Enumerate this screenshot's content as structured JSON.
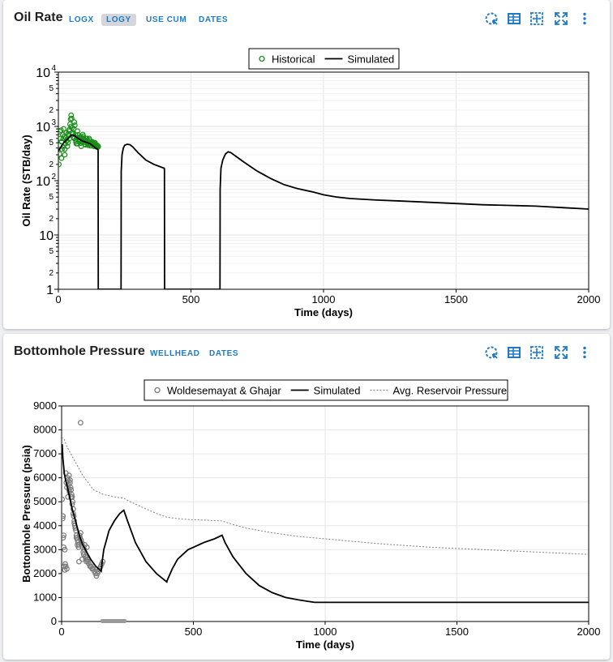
{
  "panels": [
    {
      "title": "Oil Rate",
      "buttons": [
        {
          "label": "LOGX",
          "active": false
        },
        {
          "label": "LOGY",
          "active": true
        },
        {
          "label": "USE CUM",
          "active": false
        },
        {
          "label": "DATES",
          "active": false
        }
      ],
      "icons": [
        "lasso-select-icon",
        "table-icon",
        "move-icon",
        "fullscreen-icon",
        "more-vert-icon"
      ]
    },
    {
      "title": "Bottomhole Pressure",
      "buttons": [
        {
          "label": "WELLHEAD",
          "active": false
        },
        {
          "label": "DATES",
          "active": false
        }
      ],
      "icons": [
        "lasso-select-icon",
        "table-icon",
        "move-icon",
        "fullscreen-icon",
        "more-vert-icon"
      ]
    }
  ],
  "chart_data": [
    {
      "type": "line",
      "xlabel": "Time (days)",
      "ylabel": "Oil Rate (STB/day)",
      "xlim": [
        0,
        2000
      ],
      "ylim": [
        1,
        10000
      ],
      "yscale": "log",
      "xticks": [
        "0",
        "500",
        "1000",
        "1500",
        "2000"
      ],
      "grid": true,
      "legend_position": "top-center",
      "series": [
        {
          "name": "Historical",
          "style": "marker-circle",
          "color": "#1a8f1a",
          "x": [
            2,
            4,
            6,
            8,
            10,
            12,
            14,
            16,
            18,
            20,
            22,
            24,
            26,
            28,
            30,
            32,
            34,
            36,
            38,
            40,
            42,
            44,
            46,
            48,
            50,
            52,
            54,
            56,
            58,
            60,
            62,
            64,
            66,
            68,
            70,
            72,
            74,
            76,
            78,
            80,
            82,
            84,
            86,
            88,
            90,
            92,
            94,
            96,
            98,
            100,
            102,
            104,
            106,
            108,
            110,
            112,
            114,
            116,
            118,
            120,
            122,
            124,
            126,
            128,
            130,
            132,
            134,
            136,
            138,
            140,
            142,
            144,
            146,
            148,
            150,
            6,
            12,
            18,
            24,
            30,
            36,
            42,
            48,
            54,
            60,
            66,
            72,
            78,
            84,
            90,
            96,
            102,
            108,
            114,
            120,
            126,
            132,
            138,
            144,
            150
          ],
          "y": [
            200,
            310,
            450,
            600,
            850,
            520,
            380,
            700,
            420,
            900,
            650,
            300,
            480,
            620,
            760,
            550,
            430,
            500,
            680,
            820,
            600,
            1100,
            1350,
            1600,
            1400,
            950,
            720,
            640,
            900,
            1200,
            1050,
            700,
            560,
            480,
            620,
            820,
            700,
            580,
            520,
            640,
            560,
            490,
            430,
            530,
            620,
            710,
            660,
            580,
            510,
            470,
            560,
            600,
            540,
            500,
            480,
            450,
            520,
            600,
            560,
            500,
            470,
            440,
            500,
            520,
            480,
            460,
            430,
            450,
            480,
            460,
            440,
            420,
            450,
            430,
            420,
            800,
            260,
            600,
            380,
            540,
            720,
            880,
            1000,
            760,
            600,
            520,
            480,
            560,
            640,
            520,
            580,
            460,
            600,
            500,
            440,
            520,
            470,
            500,
            450,
            430
          ],
          "values": [
            200,
            310,
            450,
            600,
            850,
            520,
            380,
            700,
            420,
            900,
            650,
            300,
            480,
            620,
            760,
            550,
            430,
            500,
            680,
            820,
            600,
            1100,
            1350,
            1600,
            1400,
            950,
            720,
            640,
            900,
            1200,
            1050,
            700,
            560,
            480,
            620,
            820,
            700,
            580,
            520,
            640,
            560,
            490,
            430,
            530,
            620,
            710,
            660,
            580,
            510,
            470,
            560,
            600,
            540,
            500,
            480,
            450,
            520,
            600,
            560,
            500,
            470,
            440,
            500,
            520,
            480,
            460,
            430,
            450,
            480,
            460,
            440,
            420,
            450,
            430,
            420,
            800,
            260,
            600,
            380,
            540,
            720,
            880,
            1000,
            760,
            600,
            520,
            480,
            560,
            640,
            520,
            580,
            460,
            600,
            500,
            440,
            520,
            470,
            500,
            450,
            430
          ]
        },
        {
          "name": "Simulated",
          "style": "solid",
          "color": "#000000",
          "x": [
            0,
            10,
            20,
            30,
            40,
            50,
            60,
            70,
            80,
            90,
            100,
            110,
            120,
            130,
            140,
            148,
            150,
            150.5,
            151,
            236,
            236.5,
            237,
            240,
            245,
            250,
            260,
            270,
            280,
            300,
            330,
            360,
            399,
            400,
            400.5,
            401,
            609,
            609.5,
            610,
            613,
            620,
            630,
            640,
            650,
            670,
            700,
            750,
            800,
            850,
            900,
            960,
            1000,
            1050,
            1100,
            1200,
            1300,
            1400,
            1500,
            1600,
            1700,
            1800,
            1900,
            2000
          ],
          "y": [
            350,
            420,
            500,
            560,
            620,
            700,
            680,
            620,
            580,
            540,
            520,
            500,
            480,
            440,
            400,
            380,
            370,
            1,
            1,
            1,
            1,
            150,
            300,
            400,
            450,
            470,
            460,
            420,
            330,
            240,
            200,
            170,
            165,
            1,
            1,
            1,
            1,
            70,
            170,
            240,
            310,
            340,
            330,
            280,
            220,
            150,
            110,
            85,
            72,
            62,
            55,
            50,
            47,
            44,
            42,
            40,
            38,
            36,
            35,
            34,
            32,
            30
          ],
          "values": [
            350,
            420,
            500,
            560,
            620,
            700,
            680,
            620,
            580,
            540,
            520,
            500,
            480,
            440,
            400,
            380,
            370,
            1,
            1,
            1,
            1,
            150,
            300,
            400,
            450,
            470,
            460,
            420,
            330,
            240,
            200,
            170,
            165,
            1,
            1,
            1,
            1,
            70,
            170,
            240,
            310,
            340,
            330,
            280,
            220,
            150,
            110,
            85,
            72,
            62,
            55,
            50,
            47,
            44,
            42,
            40,
            38,
            36,
            35,
            34,
            32,
            30
          ]
        }
      ]
    },
    {
      "type": "line",
      "xlabel": "Time (days)",
      "ylabel": "Bottomhole Pressure (psia)",
      "xlim": [
        0,
        2000
      ],
      "ylim": [
        0,
        9000
      ],
      "yticks": [
        0,
        1000,
        2000,
        3000,
        4000,
        5000,
        6000,
        7000,
        8000,
        9000
      ],
      "xticks": [
        "0",
        "500",
        "1000",
        "1500",
        "2000"
      ],
      "grid": true,
      "legend_position": "top-center",
      "series": [
        {
          "name": "Woldesemayat & Ghajar",
          "style": "marker-circle",
          "color": "#7a7a7a",
          "x": [
            2,
            4,
            6,
            8,
            10,
            12,
            14,
            16,
            18,
            20,
            22,
            24,
            26,
            28,
            30,
            32,
            34,
            36,
            38,
            40,
            42,
            44,
            46,
            48,
            50,
            52,
            54,
            56,
            58,
            60,
            62,
            64,
            66,
            68,
            70,
            72,
            74,
            76,
            78,
            80,
            82,
            84,
            86,
            88,
            90,
            92,
            94,
            96,
            98,
            100,
            104,
            108,
            112,
            116,
            120,
            124,
            128,
            132,
            136,
            140,
            144,
            148,
            152,
            156,
            60,
            66,
            72,
            78,
            84,
            5,
            8,
            12,
            16,
            20,
            24,
            28,
            32,
            36,
            40,
            44,
            48,
            52,
            56
          ],
          "y": [
            5100,
            4300,
            3500,
            3100,
            2300,
            2150,
            2400,
            6200,
            5800,
            5600,
            6000,
            5900,
            5700,
            5500,
            5400,
            5800,
            5600,
            5500,
            5300,
            5200,
            5000,
            4700,
            4400,
            4200,
            4000,
            3900,
            3800,
            3600,
            3500,
            3400,
            3300,
            3100,
            3200,
            3600,
            3500,
            3700,
            3400,
            3300,
            3200,
            3100,
            2900,
            2800,
            3000,
            3200,
            2700,
            2600,
            2500,
            3100,
            2600,
            2500,
            2400,
            2300,
            2300,
            2200,
            2200,
            2100,
            2000,
            1900,
            2000,
            2100,
            2200,
            2300,
            2400,
            2500,
            3200,
            2500,
            8300,
            2600,
            2800,
            4400,
            3600,
            3000,
            2300,
            2200,
            5200,
            6100,
            5900,
            5200,
            4900,
            4500,
            4100,
            3900,
            3500
          ],
          "values": [
            5100,
            4300,
            3500,
            3100,
            2300,
            2150,
            2400,
            6200,
            5800,
            5600,
            6000,
            5900,
            5700,
            5500,
            5400,
            5800,
            5600,
            5500,
            5300,
            5200,
            5000,
            4700,
            4400,
            4200,
            4000,
            3900,
            3800,
            3600,
            3500,
            3400,
            3300,
            3100,
            3200,
            3600,
            3500,
            3700,
            3400,
            3300,
            3200,
            3100,
            2900,
            2800,
            3000,
            3200,
            2700,
            2600,
            2500,
            3100,
            2600,
            2500,
            2400,
            2300,
            2300,
            2200,
            2200,
            2100,
            2000,
            1900,
            2000,
            2100,
            2200,
            2300,
            2400,
            2500,
            3200,
            2500,
            8300,
            2600,
            2800,
            4400,
            3600,
            3000,
            2300,
            2200,
            5200,
            6100,
            5900,
            5200,
            4900,
            4500,
            4100,
            3900,
            3500
          ]
        },
        {
          "name": "Simulated",
          "style": "solid",
          "color": "#000000",
          "x": [
            0,
            2,
            5,
            10,
            15,
            20,
            30,
            40,
            50,
            60,
            70,
            80,
            90,
            100,
            110,
            120,
            130,
            140,
            150,
            155,
            160,
            170,
            180,
            200,
            220,
            236,
            250,
            280,
            320,
            360,
            399,
            400,
            420,
            440,
            460,
            480,
            500,
            540,
            580,
            609,
            620,
            650,
            700,
            750,
            800,
            850,
            900,
            960,
            1000,
            1200,
            1500,
            2000
          ],
          "y": [
            7300,
            7400,
            6800,
            6200,
            5900,
            5700,
            5200,
            4700,
            4300,
            3900,
            3500,
            3200,
            3000,
            2800,
            2600,
            2450,
            2300,
            2200,
            2100,
            2600,
            3000,
            3400,
            3800,
            4200,
            4500,
            4650,
            4200,
            3300,
            2500,
            2000,
            1650,
            1700,
            2200,
            2600,
            2800,
            3000,
            3100,
            3300,
            3450,
            3600,
            3300,
            2700,
            2000,
            1500,
            1200,
            1000,
            900,
            800,
            800,
            800,
            800,
            800
          ],
          "values": [
            7300,
            7400,
            6800,
            6200,
            5900,
            5700,
            5200,
            4700,
            4300,
            3900,
            3500,
            3200,
            3000,
            2800,
            2600,
            2450,
            2300,
            2200,
            2100,
            2600,
            3000,
            3400,
            3800,
            4200,
            4500,
            4650,
            4200,
            3300,
            2500,
            2000,
            1650,
            1700,
            2200,
            2600,
            2800,
            3000,
            3100,
            3300,
            3450,
            3600,
            3300,
            2700,
            2000,
            1500,
            1200,
            1000,
            900,
            800,
            800,
            800,
            800,
            800
          ]
        },
        {
          "name": "Avg. Reservoir Pressure",
          "style": "dotted",
          "color": "#808080",
          "x": [
            0,
            10,
            20,
            40,
            60,
            80,
            100,
            120,
            140,
            160,
            180,
            200,
            236,
            260,
            300,
            350,
            400,
            450,
            500,
            550,
            609,
            650,
            700,
            800,
            900,
            1000,
            1200,
            1400,
            1600,
            1800,
            2000
          ],
          "y": [
            7700,
            7600,
            7300,
            6900,
            6500,
            6100,
            5800,
            5500,
            5400,
            5300,
            5250,
            5200,
            5150,
            5000,
            4800,
            4550,
            4350,
            4280,
            4250,
            4230,
            4200,
            4050,
            3900,
            3700,
            3550,
            3450,
            3250,
            3100,
            3000,
            2900,
            2800
          ],
          "values": [
            7700,
            7600,
            7300,
            6900,
            6500,
            6100,
            5800,
            5500,
            5400,
            5300,
            5250,
            5200,
            5150,
            5000,
            4800,
            4550,
            4350,
            4280,
            4250,
            4230,
            4200,
            4050,
            3900,
            3700,
            3550,
            3450,
            3250,
            3100,
            3000,
            2900,
            2800
          ]
        }
      ]
    }
  ]
}
